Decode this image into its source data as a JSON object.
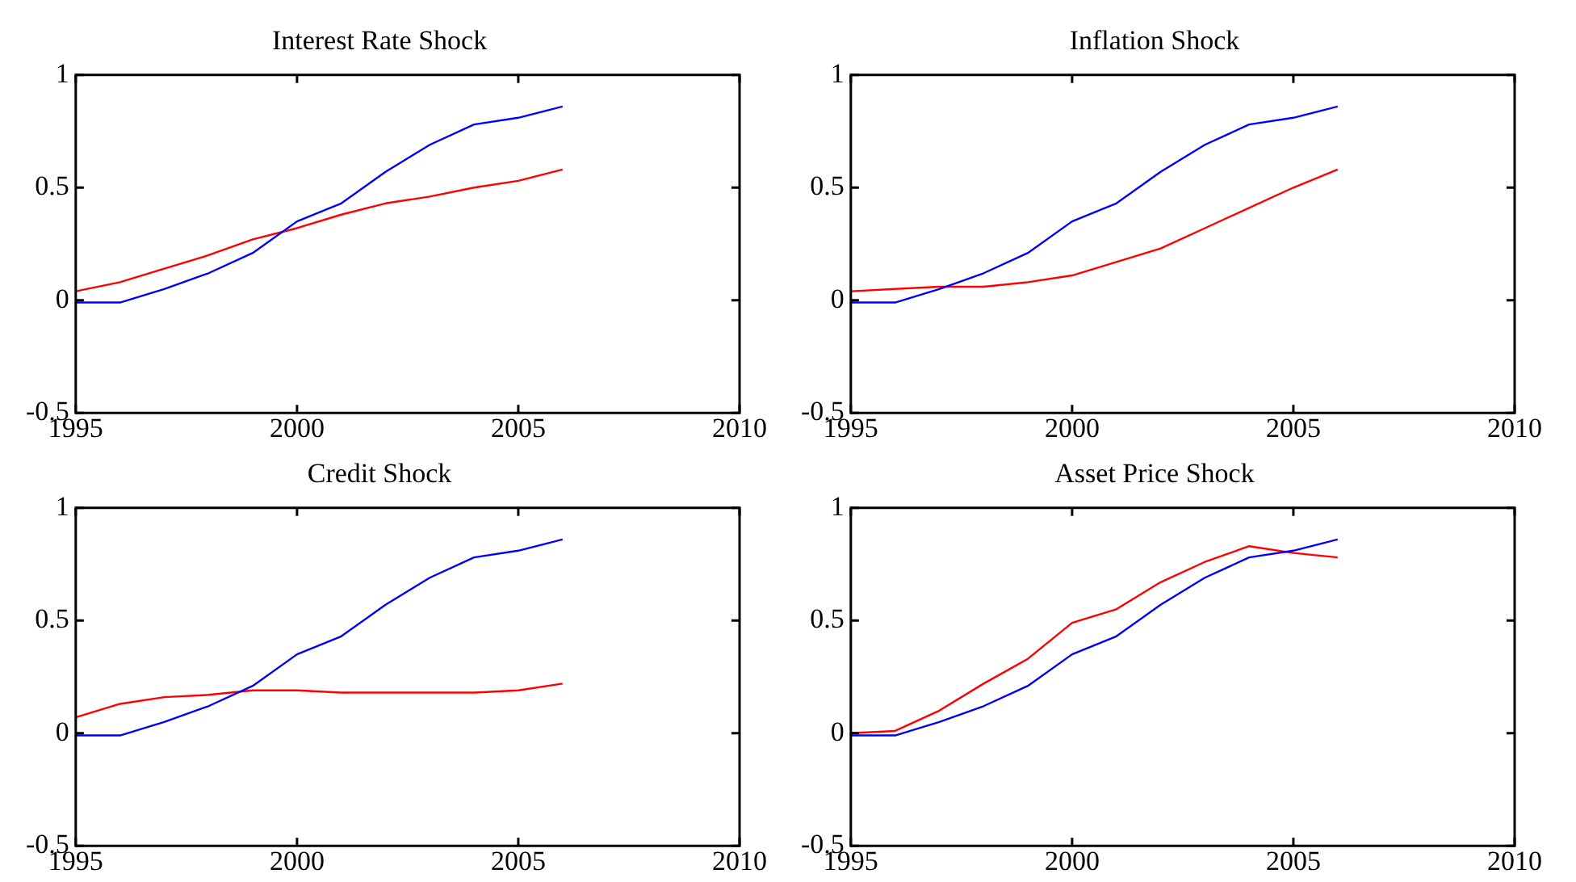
{
  "chart_data": [
    {
      "type": "line",
      "title": "Interest Rate Shock",
      "x": [
        1995,
        1996,
        1997,
        1998,
        1999,
        2000,
        2001,
        2002,
        2003,
        2004,
        2005,
        2006
      ],
      "series": [
        {
          "color": "#0000ff",
          "values": [
            -0.01,
            -0.01,
            0.05,
            0.12,
            0.21,
            0.35,
            0.43,
            0.57,
            0.69,
            0.78,
            0.81,
            0.86
          ]
        },
        {
          "color": "#ff0000",
          "values": [
            0.04,
            0.08,
            0.14,
            0.2,
            0.27,
            0.32,
            0.38,
            0.43,
            0.46,
            0.5,
            0.53,
            0.58
          ]
        }
      ],
      "xlim": [
        1995,
        2010
      ],
      "xticks": [
        1995,
        2000,
        2005,
        2010
      ],
      "ylim": [
        -0.5,
        1
      ],
      "yticks": [
        -0.5,
        0,
        0.5,
        1
      ],
      "grid": false,
      "legend": false
    },
    {
      "type": "line",
      "title": "Inflation Shock",
      "x": [
        1995,
        1996,
        1997,
        1998,
        1999,
        2000,
        2001,
        2002,
        2003,
        2004,
        2005,
        2006
      ],
      "series": [
        {
          "color": "#0000ff",
          "values": [
            -0.01,
            -0.01,
            0.05,
            0.12,
            0.21,
            0.35,
            0.43,
            0.57,
            0.69,
            0.78,
            0.81,
            0.86
          ]
        },
        {
          "color": "#ff0000",
          "values": [
            0.04,
            0.05,
            0.06,
            0.06,
            0.08,
            0.11,
            0.17,
            0.23,
            0.32,
            0.41,
            0.5,
            0.58
          ]
        }
      ],
      "xlim": [
        1995,
        2010
      ],
      "xticks": [
        1995,
        2000,
        2005,
        2010
      ],
      "ylim": [
        -0.5,
        1
      ],
      "yticks": [
        -0.5,
        0,
        0.5,
        1
      ],
      "grid": false,
      "legend": false
    },
    {
      "type": "line",
      "title": "Credit Shock",
      "x": [
        1995,
        1996,
        1997,
        1998,
        1999,
        2000,
        2001,
        2002,
        2003,
        2004,
        2005,
        2006
      ],
      "series": [
        {
          "color": "#0000ff",
          "values": [
            -0.01,
            -0.01,
            0.05,
            0.12,
            0.21,
            0.35,
            0.43,
            0.57,
            0.69,
            0.78,
            0.81,
            0.86
          ]
        },
        {
          "color": "#ff0000",
          "values": [
            0.07,
            0.13,
            0.16,
            0.17,
            0.19,
            0.19,
            0.18,
            0.18,
            0.18,
            0.18,
            0.19,
            0.22
          ]
        }
      ],
      "xlim": [
        1995,
        2010
      ],
      "xticks": [
        1995,
        2000,
        2005,
        2010
      ],
      "ylim": [
        -0.5,
        1
      ],
      "yticks": [
        -0.5,
        0,
        0.5,
        1
      ],
      "grid": false,
      "legend": false
    },
    {
      "type": "line",
      "title": "Asset Price Shock",
      "x": [
        1995,
        1996,
        1997,
        1998,
        1999,
        2000,
        2001,
        2002,
        2003,
        2004,
        2005,
        2006
      ],
      "series": [
        {
          "color": "#0000ff",
          "values": [
            -0.01,
            -0.01,
            0.05,
            0.12,
            0.21,
            0.35,
            0.43,
            0.57,
            0.69,
            0.78,
            0.81,
            0.86
          ]
        },
        {
          "color": "#ff0000",
          "values": [
            0.0,
            0.01,
            0.1,
            0.22,
            0.33,
            0.49,
            0.55,
            0.67,
            0.76,
            0.83,
            0.8,
            0.78
          ]
        }
      ],
      "xlim": [
        1995,
        2010
      ],
      "xticks": [
        1995,
        2000,
        2005,
        2010
      ],
      "ylim": [
        -0.5,
        1
      ],
      "yticks": [
        -0.5,
        0,
        0.5,
        1
      ],
      "grid": false,
      "legend": false
    }
  ]
}
